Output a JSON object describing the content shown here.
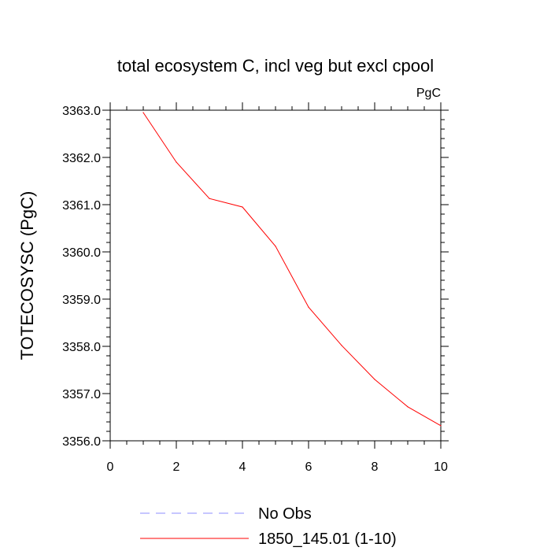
{
  "chart_data": {
    "type": "line",
    "title": "total ecosystem C, incl veg but excl cpool",
    "units_label": "PgC",
    "ylabel": "TOTECOSYSC  (PgC)",
    "xlabel": "",
    "xlim": [
      0,
      10
    ],
    "ylim": [
      3356.0,
      3363.0
    ],
    "x_ticks": [
      0,
      2,
      4,
      6,
      8,
      10
    ],
    "x_tick_labels": [
      "0",
      "2",
      "4",
      "6",
      "8",
      "10"
    ],
    "y_ticks": [
      3356.0,
      3357.0,
      3358.0,
      3359.0,
      3360.0,
      3361.0,
      3362.0,
      3363.0
    ],
    "y_tick_labels": [
      "3356.0",
      "3357.0",
      "3358.0",
      "3359.0",
      "3360.0",
      "3361.0",
      "3362.0",
      "3363.0"
    ],
    "grid": false,
    "series": [
      {
        "name": "1850_145.01 (1-10)",
        "color": "#ff0000",
        "dash": "solid",
        "x": [
          1,
          2,
          3,
          4,
          5,
          6,
          7,
          8,
          9,
          10
        ],
        "values": [
          3362.95,
          3361.9,
          3361.13,
          3360.95,
          3360.12,
          3358.83,
          3358.02,
          3357.3,
          3356.72,
          3356.32
        ]
      }
    ],
    "legend": {
      "placement": "bottom-left",
      "entries": [
        {
          "label": "No Obs",
          "color": "#8c8cff",
          "dash": "dashed"
        },
        {
          "label": "1850_145.01 (1-10)",
          "color": "#ff0000",
          "dash": "solid"
        }
      ]
    }
  }
}
